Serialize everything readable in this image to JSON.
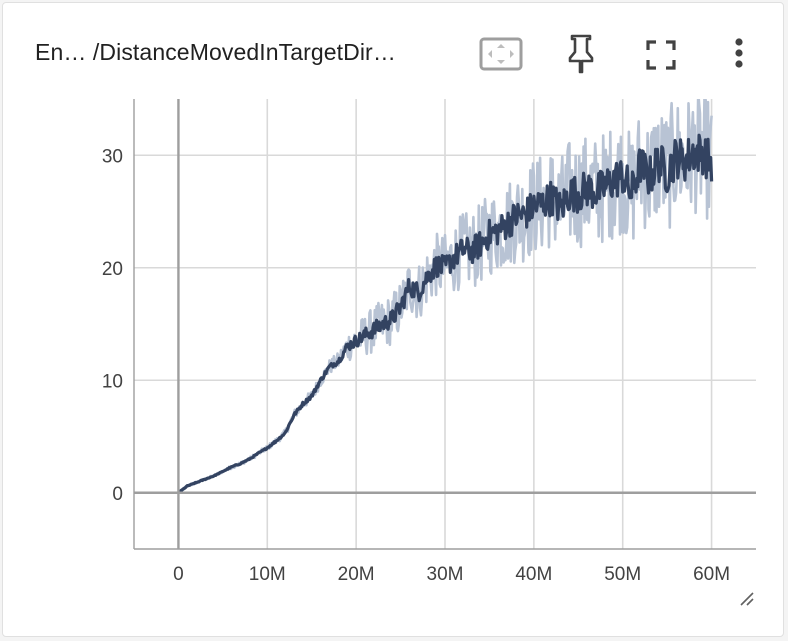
{
  "card": {
    "title": "En… /DistanceMovedInTargetDir…",
    "icons": {
      "fit_domain": "fit-to-data-icon",
      "pin": "pin-icon",
      "fullscreen": "fullscreen-icon",
      "menu": "more-vert-icon",
      "resize": "resize-handle-icon"
    }
  },
  "colors": {
    "line": "#334361",
    "band": "#b8c3d4",
    "grid": "#d9d9d9",
    "zero_axis": "#9e9e9e"
  },
  "chart_data": {
    "type": "line",
    "title": "",
    "xlabel": "",
    "ylabel": "",
    "xlim": [
      -5000000,
      65000000
    ],
    "ylim": [
      -5,
      35
    ],
    "x_ticks": [
      0,
      10000000,
      20000000,
      30000000,
      40000000,
      50000000,
      60000000
    ],
    "x_tick_labels": [
      "0",
      "10M",
      "20M",
      "30M",
      "40M",
      "50M",
      "60M"
    ],
    "y_ticks": [
      0,
      10,
      20,
      30
    ],
    "y_tick_labels": [
      "0",
      "10",
      "20",
      "30"
    ],
    "grid": true,
    "series": [
      {
        "x": [
          0,
          1000000,
          2000000,
          3000000,
          4000000,
          5000000,
          6000000,
          7000000,
          8000000,
          9000000,
          10000000,
          11000000,
          12000000,
          13000000,
          14000000,
          15000000,
          16000000,
          17000000,
          18000000,
          19000000,
          20000000,
          21000000,
          22000000,
          23000000,
          24000000,
          25000000,
          26000000,
          27000000,
          28000000,
          29000000,
          30000000,
          31000000,
          32000000,
          33000000,
          34000000,
          35000000,
          36000000,
          37000000,
          38000000,
          39000000,
          40000000,
          41000000,
          42000000,
          43000000,
          44000000,
          45000000,
          46000000,
          47000000,
          48000000,
          49000000,
          50000000,
          51000000,
          52000000,
          53000000,
          54000000,
          55000000,
          56000000,
          57000000,
          58000000,
          59000000,
          60000000
        ],
        "y": [
          0,
          0.6,
          0.9,
          1.2,
          1.5,
          1.9,
          2.3,
          2.6,
          3.0,
          3.5,
          4.0,
          4.6,
          5.3,
          6.9,
          7.9,
          8.6,
          10.0,
          11.2,
          11.7,
          13.0,
          13.5,
          14.0,
          14.5,
          15.0,
          15.4,
          16.5,
          18.4,
          17.8,
          19.2,
          20.2,
          20.0,
          20.9,
          21.6,
          21.5,
          22.1,
          23.0,
          23.3,
          23.9,
          24.6,
          24.7,
          25.5,
          25.7,
          26.3,
          25.2,
          26.6,
          26.6,
          27.0,
          26.7,
          27.2,
          27.8,
          28.2,
          26.6,
          29.2,
          28.0,
          29.5,
          28.4,
          29.9,
          29.5,
          30.3,
          30.2,
          29.3
        ],
        "spread": [
          0.05,
          0.1,
          0.1,
          0.1,
          0.1,
          0.1,
          0.15,
          0.15,
          0.15,
          0.2,
          0.2,
          0.25,
          0.3,
          0.4,
          0.45,
          0.5,
          0.55,
          0.6,
          0.7,
          1.2,
          1.5,
          1.7,
          1.9,
          2.0,
          2.1,
          2.2,
          2.3,
          2.4,
          2.5,
          2.6,
          2.8,
          2.9,
          3.0,
          3.2,
          3.3,
          3.4,
          3.5,
          3.6,
          3.8,
          3.9,
          4.0,
          4.1,
          4.2,
          4.3,
          4.4,
          4.5,
          4.5,
          4.6,
          4.6,
          4.7,
          4.7,
          4.8,
          4.8,
          4.9,
          4.9,
          5.0,
          5.0,
          5.0,
          5.0,
          5.0,
          5.0
        ]
      }
    ]
  }
}
